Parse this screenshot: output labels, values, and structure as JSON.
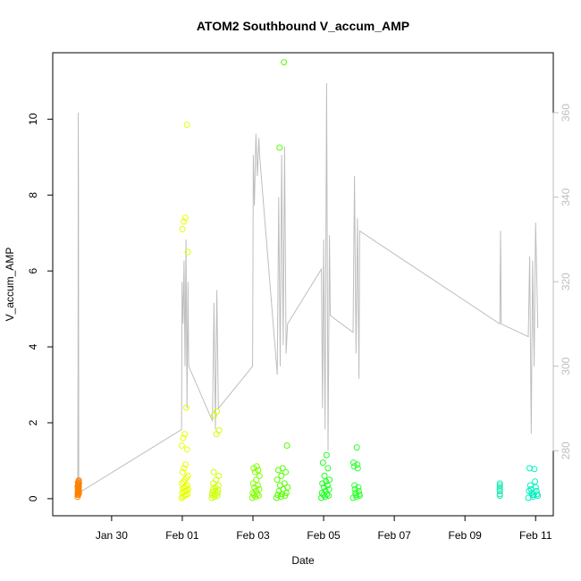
{
  "chart_data": {
    "type": "scatter",
    "title": "ATOM2 Southbound V_accum_AMP",
    "xlabel": "Date",
    "ylabel": "V_accum_AMP",
    "xlim": [
      "2025-01-28T08:00",
      "2025-02-11T12:00"
    ],
    "ylim": [
      -0.45,
      11.75
    ],
    "y2lim": [
      264.6,
      374.2
    ],
    "x_ticks": [
      {
        "t": "2025-01-30T00:00",
        "label": "Jan 30"
      },
      {
        "t": "2025-02-01T00:00",
        "label": "Feb 01"
      },
      {
        "t": "2025-02-03T00:00",
        "label": "Feb 03"
      },
      {
        "t": "2025-02-05T00:00",
        "label": "Feb 05"
      },
      {
        "t": "2025-02-07T00:00",
        "label": "Feb 07"
      },
      {
        "t": "2025-02-09T00:00",
        "label": "Feb 09"
      },
      {
        "t": "2025-02-11T00:00",
        "label": "Feb 11"
      }
    ],
    "y_ticks": [
      0,
      2,
      4,
      6,
      8,
      10
    ],
    "y2_ticks": [
      280,
      300,
      320,
      340,
      360
    ],
    "colors": {
      "axis": "#000000",
      "secondary_line": "#bebebe",
      "secondary_axis": "#bebebe"
    },
    "clusters": [
      {
        "t0": "2025-01-29T00:55",
        "t1": "2025-01-29T01:50",
        "color": "#ff8000",
        "points": [
          0.05,
          0.1,
          0.12,
          0.15,
          0.18,
          0.2,
          0.22,
          0.25,
          0.28,
          0.3,
          0.32,
          0.35,
          0.38,
          0.4,
          0.42,
          0.45,
          0.48,
          0.1,
          0.2,
          0.3,
          0.15,
          0.25,
          0.35
        ]
      },
      {
        "t0": "2025-01-31T23:30",
        "t1": "2025-02-01T04:00",
        "color": "#e6ff00",
        "points": [
          0.02,
          0.05,
          0.08,
          0.1,
          0.12,
          0.15,
          0.18,
          0.2,
          0.22,
          0.25,
          0.28,
          0.3,
          0.32,
          0.35,
          0.4,
          0.45,
          0.5,
          0.55,
          0.6,
          0.7,
          0.8,
          0.9,
          1.3,
          1.4,
          1.6,
          1.7,
          2.4,
          6.5,
          7.1,
          7.3,
          7.4,
          9.85
        ]
      },
      {
        "t0": "2025-02-01T20:00",
        "t1": "2025-02-02T01:00",
        "color": "#ccff00",
        "points": [
          0.02,
          0.05,
          0.08,
          0.1,
          0.12,
          0.15,
          0.18,
          0.2,
          0.22,
          0.25,
          0.3,
          0.35,
          0.4,
          0.5,
          0.6,
          0.7,
          1.7,
          1.8,
          2.2,
          2.3
        ]
      },
      {
        "t0": "2025-02-02T23:30",
        "t1": "2025-02-03T04:30",
        "color": "#80ff00",
        "points": [
          0.02,
          0.05,
          0.08,
          0.1,
          0.12,
          0.15,
          0.2,
          0.25,
          0.3,
          0.35,
          0.4,
          0.5,
          0.6,
          0.7,
          0.75,
          0.8,
          0.85
        ]
      },
      {
        "t0": "2025-02-03T16:00",
        "t1": "2025-02-03T23:30",
        "color": "#55ff00",
        "points": [
          0.02,
          0.05,
          0.08,
          0.1,
          0.12,
          0.15,
          0.2,
          0.25,
          0.3,
          0.35,
          0.4,
          0.5,
          0.6,
          0.7,
          0.75,
          0.8,
          1.4,
          9.25,
          11.5
        ]
      },
      {
        "t0": "2025-02-04T22:30",
        "t1": "2025-02-05T04:00",
        "color": "#20ff20",
        "points": [
          0.02,
          0.05,
          0.08,
          0.1,
          0.12,
          0.15,
          0.2,
          0.25,
          0.3,
          0.35,
          0.4,
          0.45,
          0.5,
          0.6,
          0.8,
          0.95,
          1.15
        ]
      },
      {
        "t0": "2025-02-05T20:00",
        "t1": "2025-02-06T00:30",
        "color": "#30ff30",
        "points": [
          0.02,
          0.05,
          0.08,
          0.1,
          0.12,
          0.15,
          0.2,
          0.25,
          0.3,
          0.35,
          0.8,
          0.85,
          0.9,
          0.95,
          1.35
        ]
      },
      {
        "t0": "2025-02-09T23:40",
        "t1": "2025-02-10T00:40",
        "color": "#1de9b6",
        "points": [
          0.08,
          0.12,
          0.2,
          0.25,
          0.3,
          0.35,
          0.4
        ]
      },
      {
        "t0": "2025-02-10T19:00",
        "t1": "2025-02-11T01:30",
        "color": "#00f0c0",
        "points": [
          0.02,
          0.05,
          0.08,
          0.1,
          0.12,
          0.15,
          0.2,
          0.25,
          0.3,
          0.35,
          0.45,
          0.8,
          0.78,
          0.2,
          0.1
        ]
      }
    ],
    "secondary_line": [
      [
        "2025-01-29T01:00",
        270
      ],
      [
        "2025-01-29T01:10",
        300
      ],
      [
        "2025-01-29T01:20",
        360
      ],
      [
        "2025-01-29T01:30",
        345
      ],
      [
        "2025-01-29T01:40",
        270
      ],
      [
        "2025-01-31T23:30",
        285
      ],
      [
        "2025-01-31T23:50",
        320
      ],
      [
        "2025-02-01T00:30",
        310
      ],
      [
        "2025-02-01T01:10",
        325
      ],
      [
        "2025-02-01T01:50",
        300
      ],
      [
        "2025-02-01T02:30",
        330
      ],
      [
        "2025-02-01T03:10",
        290
      ],
      [
        "2025-02-01T03:50",
        320
      ],
      [
        "2025-02-01T04:20",
        300
      ],
      [
        "2025-02-01T20:30",
        287
      ],
      [
        "2025-02-01T21:30",
        315
      ],
      [
        "2025-02-01T22:30",
        285
      ],
      [
        "2025-02-01T23:30",
        318
      ],
      [
        "2025-02-02T00:30",
        290
      ],
      [
        "2025-02-02T23:45",
        300
      ],
      [
        "2025-02-03T00:15",
        350
      ],
      [
        "2025-02-03T01:00",
        338
      ],
      [
        "2025-02-03T02:00",
        355
      ],
      [
        "2025-02-03T03:00",
        345
      ],
      [
        "2025-02-03T04:00",
        354
      ],
      [
        "2025-02-03T04:30",
        350
      ],
      [
        "2025-02-03T16:30",
        298
      ],
      [
        "2025-02-03T17:30",
        340
      ],
      [
        "2025-02-03T18:30",
        300
      ],
      [
        "2025-02-03T19:30",
        350
      ],
      [
        "2025-02-03T20:30",
        305
      ],
      [
        "2025-02-03T21:30",
        352
      ],
      [
        "2025-02-03T22:30",
        303
      ],
      [
        "2025-02-03T23:30",
        310
      ],
      [
        "2025-02-04T22:30",
        323
      ],
      [
        "2025-02-04T23:15",
        290
      ],
      [
        "2025-02-05T00:00",
        330
      ],
      [
        "2025-02-05T01:00",
        285
      ],
      [
        "2025-02-05T02:00",
        367
      ],
      [
        "2025-02-05T03:00",
        280
      ],
      [
        "2025-02-05T04:00",
        331
      ],
      [
        "2025-02-05T04:30",
        312
      ],
      [
        "2025-02-05T20:00",
        308
      ],
      [
        "2025-02-05T21:00",
        345
      ],
      [
        "2025-02-05T22:00",
        303
      ],
      [
        "2025-02-05T23:00",
        335
      ],
      [
        "2025-02-06T00:00",
        297
      ],
      [
        "2025-02-06T00:30",
        332
      ],
      [
        "2025-02-09T23:40",
        310
      ],
      [
        "2025-02-10T00:10",
        332
      ],
      [
        "2025-02-10T00:40",
        310
      ],
      [
        "2025-02-10T19:00",
        307
      ],
      [
        "2025-02-10T20:00",
        326
      ],
      [
        "2025-02-10T21:00",
        284
      ],
      [
        "2025-02-10T22:00",
        325
      ],
      [
        "2025-02-10T23:00",
        300
      ],
      [
        "2025-02-11T00:00",
        334
      ],
      [
        "2025-02-11T01:30",
        309
      ]
    ]
  }
}
